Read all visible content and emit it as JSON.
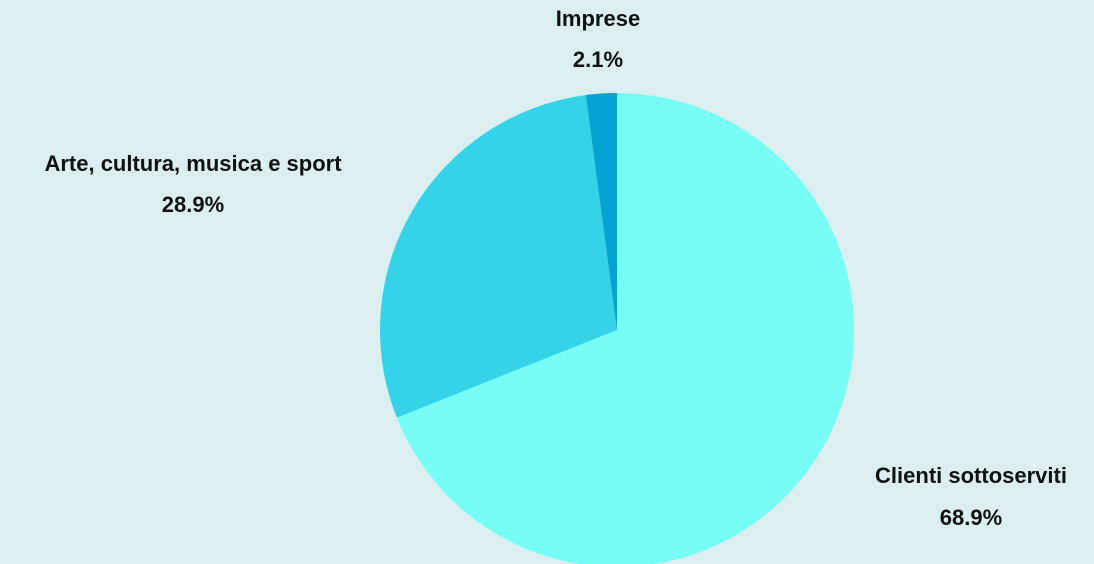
{
  "background": "#dbeef0",
  "chart_data": {
    "type": "pie",
    "title": "",
    "start_angle_deg": 0,
    "direction": "clockwise",
    "legend": "none",
    "slices": [
      {
        "label": "Clienti sottoserviti",
        "value": 68.9,
        "value_label": "68.9%",
        "color": "#76fdf5"
      },
      {
        "label": "Arte, cultura, musica e sport",
        "value": 28.9,
        "value_label": "28.9%",
        "color": "#35d3e8"
      },
      {
        "label": "Imprese",
        "value": 2.1,
        "value_label": "2.1%",
        "color": "#05a3d4"
      }
    ]
  }
}
